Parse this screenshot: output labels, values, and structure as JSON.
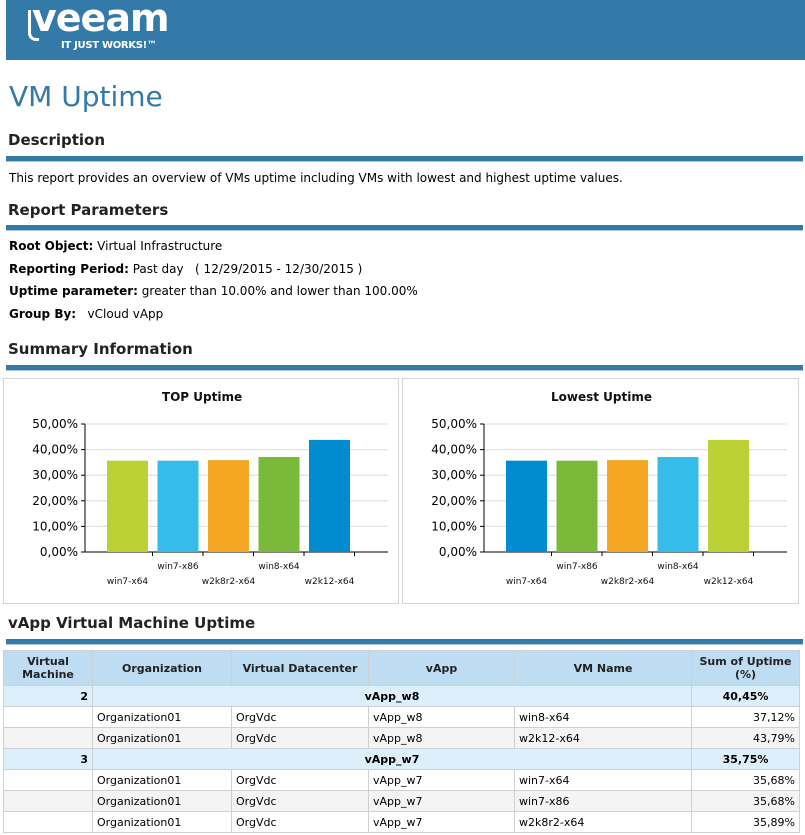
{
  "header": {
    "logo_text": "veeam",
    "logo_tagline": "IT JUST WORKS!™",
    "brand_color": "#337aa8"
  },
  "title": "VM Uptime",
  "description": {
    "heading": "Description",
    "text": "This report provides an overview of VMs uptime including VMs with lowest and highest uptime values."
  },
  "parameters": {
    "heading": "Report Parameters",
    "root_object_label": "Root Object:",
    "root_object_value": "Virtual Infrastructure",
    "reporting_period_label": "Reporting Period:",
    "reporting_period_value": "Past day   ( 12/29/2015 - 12/30/2015 )",
    "uptime_label": "Uptime parameter:",
    "uptime_value": "greater than 10.00% and lower than 100.00%",
    "group_by_label": "Group By:",
    "group_by_value": "vCloud vApp"
  },
  "summary": {
    "heading": "Summary Information"
  },
  "chart_data": [
    {
      "type": "bar",
      "title": "TOP Uptime",
      "categories": [
        "win7-x64",
        "win7-x86",
        "w2k8r2-x64",
        "win8-x64",
        "w2k12-x64"
      ],
      "values": [
        35.68,
        35.68,
        35.89,
        37.12,
        43.79
      ],
      "colors": [
        "#bcd135",
        "#35bce9",
        "#f5a724",
        "#7ab93a",
        "#008ccf"
      ],
      "ylim": [
        0,
        50
      ],
      "yticks": [
        "0,00%",
        "10,00%",
        "20,00%",
        "30,00%",
        "40,00%",
        "50,00%"
      ],
      "xlabel": "",
      "ylabel": "",
      "grid": true
    },
    {
      "type": "bar",
      "title": "Lowest Uptime",
      "categories": [
        "win7-x64",
        "win7-x86",
        "w2k8r2-x64",
        "win8-x64",
        "w2k12-x64"
      ],
      "values": [
        35.68,
        35.68,
        35.89,
        37.12,
        43.79
      ],
      "colors": [
        "#008ccf",
        "#7ab93a",
        "#f5a724",
        "#35bce9",
        "#bcd135"
      ],
      "ylim": [
        0,
        50
      ],
      "yticks": [
        "0,00%",
        "10,00%",
        "20,00%",
        "30,00%",
        "40,00%",
        "50,00%"
      ],
      "xlabel": "",
      "ylabel": "",
      "grid": true
    }
  ],
  "table": {
    "heading": "vApp Virtual Machine Uptime",
    "columns": [
      "Virtual Machine",
      "Organization",
      "Virtual Datacenter",
      "vApp",
      "VM Name",
      "Sum of Uptime (%)"
    ],
    "groups": [
      {
        "count": "2",
        "vapp": "vApp_w8",
        "sum": "40,45%",
        "rows": [
          {
            "organization": "Organization01",
            "vdc": "OrgVdc",
            "vapp": "vApp_w8",
            "vm": "win8-x64",
            "uptime": "37,12%"
          },
          {
            "organization": "Organization01",
            "vdc": "OrgVdc",
            "vapp": "vApp_w8",
            "vm": "w2k12-x64",
            "uptime": "43,79%"
          }
        ]
      },
      {
        "count": "3",
        "vapp": "vApp_w7",
        "sum": "35,75%",
        "rows": [
          {
            "organization": "Organization01",
            "vdc": "OrgVdc",
            "vapp": "vApp_w7",
            "vm": "win7-x64",
            "uptime": "35,68%"
          },
          {
            "organization": "Organization01",
            "vdc": "OrgVdc",
            "vapp": "vApp_w7",
            "vm": "win7-x86",
            "uptime": "35,68%"
          },
          {
            "organization": "Organization01",
            "vdc": "OrgVdc",
            "vapp": "vApp_w7",
            "vm": "w2k8r2-x64",
            "uptime": "35,89%"
          }
        ]
      }
    ]
  }
}
